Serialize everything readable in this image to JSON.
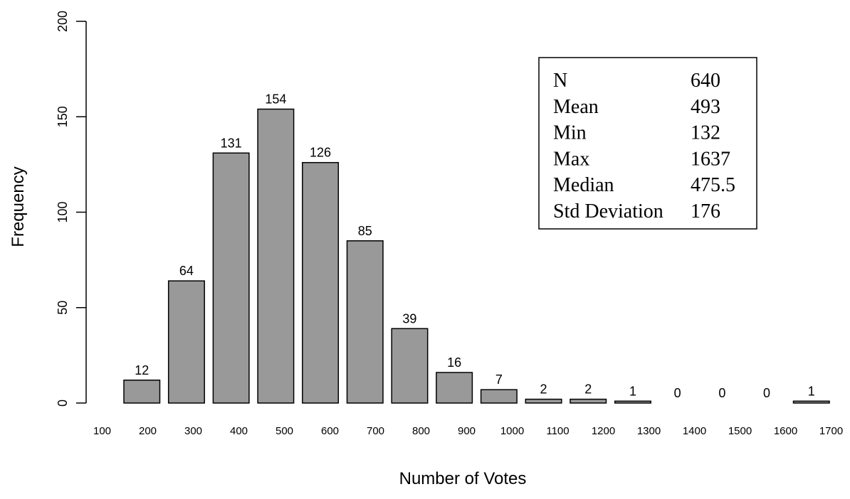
{
  "chart_data": {
    "type": "bar",
    "title": "",
    "xlabel": "Number of Votes",
    "ylabel": "Frequency",
    "ylim": [
      0,
      200
    ],
    "yticks": [
      0,
      50,
      100,
      150,
      200
    ],
    "x_bin_edges": [
      100,
      200,
      300,
      400,
      500,
      600,
      700,
      800,
      900,
      1000,
      1100,
      1200,
      1300,
      1400,
      1500,
      1600,
      1700
    ],
    "categories": [
      "100-200",
      "200-300",
      "300-400",
      "400-500",
      "500-600",
      "600-700",
      "700-800",
      "800-900",
      "900-1000",
      "1000-1100",
      "1100-1200",
      "1200-1300",
      "1300-1400",
      "1400-1500",
      "1500-1600",
      "1600-1700"
    ],
    "values": [
      12,
      64,
      131,
      154,
      126,
      85,
      39,
      16,
      7,
      2,
      2,
      1,
      0,
      0,
      0,
      1
    ],
    "data_labels": true,
    "bar_color": "#999999",
    "grid": false,
    "stats_box": [
      {
        "label": "N",
        "value": "640"
      },
      {
        "label": "Mean",
        "value": "493"
      },
      {
        "label": "Min",
        "value": "132"
      },
      {
        "label": "Max",
        "value": "1637"
      },
      {
        "label": "Median",
        "value": "475.5"
      },
      {
        "label": "Std Deviation",
        "value": "176"
      }
    ]
  }
}
